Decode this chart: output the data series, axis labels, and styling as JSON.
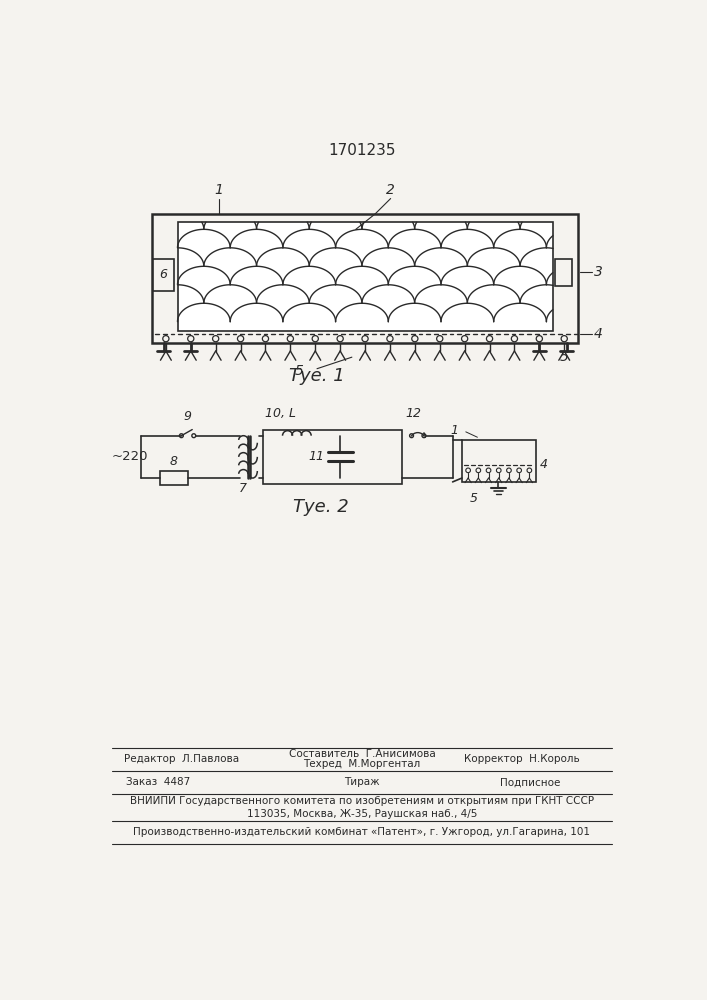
{
  "patent_number": "1701235",
  "fig1_caption": "Τуе. 1",
  "fig2_caption": "Τуе. 2",
  "background_color": "#f5f3ef",
  "line_color": "#2a2a2a",
  "footer_row1_left": "Редактор  Л.Павлова",
  "footer_row1_mid1": "Составитель  Г.Анисимова",
  "footer_row1_mid2": "Техред  М.Моргентал",
  "footer_row1_right": "Корректор  Н.Король",
  "footer_row2_left": "Заказ  4487",
  "footer_row2_mid": "Тираж",
  "footer_row2_right": "Подписное",
  "footer_row3": "ВНИИПИ Государственного комитета по изобретениям и открытиям при ГКНТ СССР",
  "footer_row4": "113035, Москва, Ж-35, Раушская наб., 4/5",
  "footer_row5": "Производственно-издательский комбинат «Патент», г. Ужгород, ул.Гагарина, 101"
}
